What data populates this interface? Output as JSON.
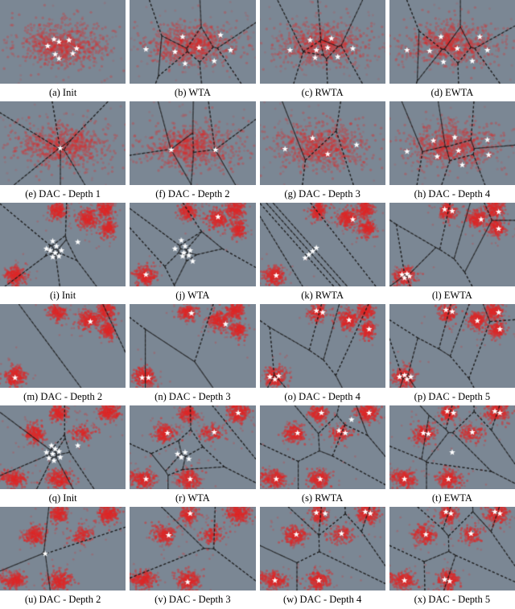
{
  "chart_data": {
    "type": "scatter",
    "grid": {
      "rows": 6,
      "cols": 4
    },
    "style": {
      "panel_bg": "#7b8794",
      "dot_color": "#dd2727",
      "line_color": "#1b1b1b",
      "star_color": "#ffffff",
      "page_bg": "#ffffff",
      "caption_color": "#000000"
    },
    "datasets": {
      "band": {
        "alpha": 0.3,
        "r": 1.7,
        "clusters": [
          {
            "cx": 0.5,
            "cy": 0.52,
            "sx": 0.205,
            "sy": 0.145,
            "n": 470
          },
          {
            "cx": 0.48,
            "cy": 0.55,
            "sx": 0.13,
            "sy": 0.09,
            "n": 260
          }
        ]
      },
      "five": {
        "alpha": 0.5,
        "r": 1.5,
        "clusters": [
          {
            "cx": 0.46,
            "cy": 0.1,
            "sx": 0.033,
            "sy": 0.05,
            "n": 160
          },
          {
            "cx": 0.84,
            "cy": 0.08,
            "sx": 0.033,
            "sy": 0.05,
            "n": 160
          },
          {
            "cx": 0.7,
            "cy": 0.19,
            "sx": 0.04,
            "sy": 0.055,
            "n": 200
          },
          {
            "cx": 0.86,
            "cy": 0.31,
            "sx": 0.03,
            "sy": 0.05,
            "n": 150
          },
          {
            "cx": 0.12,
            "cy": 0.87,
            "sx": 0.04,
            "sy": 0.055,
            "n": 220
          }
        ]
      },
      "six": {
        "alpha": 0.5,
        "r": 1.5,
        "clusters": [
          {
            "cx": 0.47,
            "cy": 0.09,
            "sx": 0.033,
            "sy": 0.05,
            "n": 160
          },
          {
            "cx": 0.86,
            "cy": 0.08,
            "sx": 0.042,
            "sy": 0.055,
            "n": 220
          },
          {
            "cx": 0.28,
            "cy": 0.34,
            "sx": 0.042,
            "sy": 0.055,
            "n": 190
          },
          {
            "cx": 0.65,
            "cy": 0.33,
            "sx": 0.048,
            "sy": 0.05,
            "n": 110
          },
          {
            "cx": 0.12,
            "cy": 0.88,
            "sx": 0.04,
            "sy": 0.05,
            "n": 180
          },
          {
            "cx": 0.47,
            "cy": 0.88,
            "sx": 0.045,
            "sy": 0.055,
            "n": 210
          },
          {
            "cx": 0.03,
            "cy": 0.85,
            "sx": 0.018,
            "sy": 0.035,
            "n": 25
          }
        ]
      }
    },
    "panels": [
      {
        "id": "a",
        "caption": "(a) Init",
        "dataset": "band",
        "voronoi": false,
        "stars": [
          [
            0.43,
            0.47
          ],
          [
            0.47,
            0.5
          ],
          [
            0.38,
            0.55
          ],
          [
            0.55,
            0.48
          ],
          [
            0.61,
            0.58
          ],
          [
            0.44,
            0.65
          ],
          [
            0.47,
            0.7
          ],
          [
            0.58,
            0.64
          ]
        ]
      },
      {
        "id": "b",
        "caption": "(b) WTA",
        "dataset": "band",
        "voronoi": true,
        "stars": [
          [
            0.42,
            0.44
          ],
          [
            0.13,
            0.59
          ],
          [
            0.36,
            0.62
          ],
          [
            0.55,
            0.57
          ],
          [
            0.72,
            0.42
          ],
          [
            0.8,
            0.6
          ],
          [
            0.44,
            0.76
          ],
          [
            0.67,
            0.73
          ]
        ]
      },
      {
        "id": "c",
        "caption": "(c) RWTA",
        "dataset": "band",
        "voronoi": true,
        "stars": [
          [
            0.4,
            0.48
          ],
          [
            0.24,
            0.6
          ],
          [
            0.45,
            0.6
          ],
          [
            0.54,
            0.57
          ],
          [
            0.57,
            0.46
          ],
          [
            0.74,
            0.58
          ],
          [
            0.44,
            0.69
          ],
          [
            0.62,
            0.68
          ]
        ]
      },
      {
        "id": "d",
        "caption": "(d) EWTA",
        "dataset": "band",
        "voronoi": true,
        "stars": [
          [
            0.41,
            0.44
          ],
          [
            0.14,
            0.6
          ],
          [
            0.32,
            0.61
          ],
          [
            0.54,
            0.58
          ],
          [
            0.72,
            0.44
          ],
          [
            0.78,
            0.6
          ],
          [
            0.43,
            0.74
          ],
          [
            0.66,
            0.73
          ]
        ]
      },
      {
        "id": "e",
        "caption": "(e) DAC - Depth 1",
        "dataset": "band",
        "voronoi": true,
        "stars": [
          [
            0.48,
            0.56
          ]
        ],
        "gens": [
          [
            0.505,
            0.55
          ],
          [
            0.49,
            0.52
          ],
          [
            0.458,
            0.528
          ],
          [
            0.443,
            0.565
          ],
          [
            0.462,
            0.6
          ],
          [
            0.5,
            0.6
          ],
          [
            0.528,
            0.575
          ]
        ]
      },
      {
        "id": "f",
        "caption": "(f) DAC - Depth 2",
        "dataset": "band",
        "voronoi": true,
        "stars": [
          [
            0.33,
            0.58
          ],
          [
            0.68,
            0.58
          ]
        ],
        "gens": [
          [
            0.31,
            0.55
          ],
          [
            0.35,
            0.57
          ],
          [
            0.315,
            0.6
          ],
          [
            0.335,
            0.54
          ],
          [
            0.66,
            0.55
          ],
          [
            0.7,
            0.575
          ],
          [
            0.665,
            0.605
          ],
          [
            0.685,
            0.545
          ]
        ]
      },
      {
        "id": "g",
        "caption": "(g) DAC - Depth 3",
        "dataset": "band",
        "voronoi": true,
        "stars": [
          [
            0.42,
            0.44
          ],
          [
            0.2,
            0.57
          ],
          [
            0.54,
            0.63
          ],
          [
            0.77,
            0.52
          ]
        ]
      },
      {
        "id": "h",
        "caption": "(h) DAC - Depth 4",
        "dataset": "band",
        "voronoi": true,
        "stars": [
          [
            0.35,
            0.47
          ],
          [
            0.14,
            0.6
          ],
          [
            0.38,
            0.66
          ],
          [
            0.52,
            0.43
          ],
          [
            0.55,
            0.59
          ],
          [
            0.78,
            0.46
          ],
          [
            0.79,
            0.64
          ],
          [
            0.58,
            0.76
          ]
        ]
      },
      {
        "id": "i",
        "caption": "(i) Init",
        "dataset": "five",
        "voronoi": true,
        "stars": [
          [
            0.42,
            0.46
          ],
          [
            0.37,
            0.55
          ],
          [
            0.4,
            0.57
          ],
          [
            0.45,
            0.52
          ],
          [
            0.44,
            0.6
          ],
          [
            0.49,
            0.57
          ],
          [
            0.42,
            0.65
          ],
          [
            0.47,
            0.64
          ],
          [
            0.62,
            0.47
          ]
        ]
      },
      {
        "id": "j",
        "caption": "(j) WTA",
        "dataset": "five",
        "voronoi": true,
        "stars": [
          [
            0.41,
            0.45
          ],
          [
            0.36,
            0.55
          ],
          [
            0.44,
            0.52
          ],
          [
            0.43,
            0.6
          ],
          [
            0.48,
            0.57
          ],
          [
            0.42,
            0.64
          ],
          [
            0.5,
            0.7
          ],
          [
            0.47,
            0.63
          ],
          [
            0.7,
            0.17
          ],
          [
            0.13,
            0.86
          ]
        ]
      },
      {
        "id": "k",
        "caption": "(k) RWTA",
        "dataset": "five",
        "voronoi": true,
        "stars": [
          [
            0.45,
            0.54
          ],
          [
            0.42,
            0.58
          ],
          [
            0.39,
            0.62
          ],
          [
            0.36,
            0.66
          ],
          [
            0.74,
            0.2
          ],
          [
            0.13,
            0.87
          ]
        ]
      },
      {
        "id": "l",
        "caption": "(l) EWTA",
        "dataset": "five",
        "voronoi": true,
        "stars": [
          [
            0.44,
            0.08
          ],
          [
            0.5,
            0.1
          ],
          [
            0.73,
            0.2
          ],
          [
            0.87,
            0.11
          ],
          [
            0.87,
            0.31
          ],
          [
            0.1,
            0.86
          ],
          [
            0.14,
            0.85
          ],
          [
            0.12,
            0.9
          ],
          [
            0.16,
            0.88
          ]
        ]
      },
      {
        "id": "m",
        "caption": "(m) DAC - Depth 2",
        "dataset": "five",
        "voronoi": true,
        "stars": [
          [
            0.72,
            0.21
          ],
          [
            0.12,
            0.88
          ]
        ],
        "gens": [
          [
            0.72,
            0.21
          ],
          [
            0.12,
            0.88
          ],
          [
            0.99,
            0.02
          ]
        ]
      },
      {
        "id": "n",
        "caption": "(n) DAC - Depth 3",
        "dataset": "five",
        "voronoi": true,
        "stars": [
          [
            0.49,
            0.11
          ],
          [
            0.76,
            0.24
          ],
          [
            0.1,
            0.88
          ],
          [
            0.15,
            0.88
          ]
        ]
      },
      {
        "id": "o",
        "caption": "(o) DAC - Depth 4",
        "dataset": "five",
        "voronoi": true,
        "stars": [
          [
            0.45,
            0.08
          ],
          [
            0.5,
            0.1
          ],
          [
            0.71,
            0.19
          ],
          [
            0.87,
            0.3
          ],
          [
            0.08,
            0.87
          ],
          [
            0.12,
            0.9
          ],
          [
            0.15,
            0.86
          ]
        ]
      },
      {
        "id": "p",
        "caption": "(p) DAC - Depth 5",
        "dataset": "five",
        "voronoi": true,
        "stars": [
          [
            0.45,
            0.07
          ],
          [
            0.5,
            0.09
          ],
          [
            0.7,
            0.2
          ],
          [
            0.87,
            0.1
          ],
          [
            0.88,
            0.3
          ],
          [
            0.08,
            0.87
          ],
          [
            0.12,
            0.85
          ],
          [
            0.14,
            0.9
          ],
          [
            0.17,
            0.87
          ]
        ]
      },
      {
        "id": "q",
        "caption": "(q) Init",
        "dataset": "six",
        "voronoi": true,
        "stars": [
          [
            0.41,
            0.48
          ],
          [
            0.44,
            0.52
          ],
          [
            0.37,
            0.56
          ],
          [
            0.42,
            0.58
          ],
          [
            0.47,
            0.55
          ],
          [
            0.39,
            0.63
          ],
          [
            0.43,
            0.66
          ],
          [
            0.48,
            0.62
          ],
          [
            0.62,
            0.48
          ]
        ]
      },
      {
        "id": "r",
        "caption": "(r) WTA",
        "dataset": "six",
        "voronoi": true,
        "stars": [
          [
            0.86,
            0.09
          ],
          [
            0.3,
            0.33
          ],
          [
            0.67,
            0.32
          ],
          [
            0.13,
            0.88
          ],
          [
            0.48,
            0.88
          ],
          [
            0.38,
            0.58
          ],
          [
            0.41,
            0.62
          ],
          [
            0.44,
            0.56
          ],
          [
            0.47,
            0.64
          ]
        ]
      },
      {
        "id": "s",
        "caption": "(s) RWTA",
        "dataset": "six",
        "voronoi": true,
        "stars": [
          [
            0.49,
            0.09
          ],
          [
            0.87,
            0.09
          ],
          [
            0.3,
            0.33
          ],
          [
            0.63,
            0.3
          ],
          [
            0.68,
            0.33
          ],
          [
            0.73,
            0.17
          ],
          [
            0.13,
            0.88
          ],
          [
            0.48,
            0.88
          ]
        ]
      },
      {
        "id": "t",
        "caption": "(t) EWTA",
        "dataset": "six",
        "voronoi": true,
        "stars": [
          [
            0.46,
            0.07
          ],
          [
            0.51,
            0.09
          ],
          [
            0.84,
            0.07
          ],
          [
            0.88,
            0.09
          ],
          [
            0.27,
            0.33
          ],
          [
            0.31,
            0.34
          ],
          [
            0.66,
            0.32
          ],
          [
            0.5,
            0.56
          ],
          [
            0.12,
            0.88
          ],
          [
            0.47,
            0.88
          ]
        ]
      },
      {
        "id": "u",
        "caption": "(u) DAC - Depth 2",
        "dataset": "six",
        "voronoi": true,
        "stars": [
          [
            0.36,
            0.56
          ]
        ],
        "gens": [
          [
            0.335,
            0.53
          ],
          [
            0.355,
            0.555
          ],
          [
            0.375,
            0.58
          ],
          [
            0.35,
            0.585
          ],
          [
            0.365,
            0.535
          ]
        ]
      },
      {
        "id": "v",
        "caption": "(v) DAC - Depth 3",
        "dataset": "six",
        "voronoi": true,
        "stars": [
          [
            0.48,
            0.08
          ],
          [
            0.31,
            0.34
          ],
          [
            0.46,
            0.9
          ]
        ],
        "gens": [
          [
            0.48,
            0.08
          ],
          [
            0.31,
            0.34
          ],
          [
            0.46,
            0.9
          ],
          [
            0.87,
            0.1
          ]
        ]
      },
      {
        "id": "w",
        "caption": "(w) DAC - Depth 4",
        "dataset": "six",
        "voronoi": true,
        "stars": [
          [
            0.45,
            0.07
          ],
          [
            0.52,
            0.08
          ],
          [
            0.84,
            0.06
          ],
          [
            0.88,
            0.08
          ],
          [
            0.29,
            0.33
          ],
          [
            0.65,
            0.32
          ],
          [
            0.12,
            0.88
          ],
          [
            0.47,
            0.88
          ]
        ]
      },
      {
        "id": "x",
        "caption": "(x) DAC - Depth 5",
        "dataset": "six",
        "voronoi": true,
        "stars": [
          [
            0.45,
            0.06
          ],
          [
            0.49,
            0.08
          ],
          [
            0.84,
            0.06
          ],
          [
            0.88,
            0.08
          ],
          [
            0.29,
            0.33
          ],
          [
            0.65,
            0.32
          ],
          [
            0.12,
            0.88
          ],
          [
            0.44,
            0.87
          ],
          [
            0.48,
            0.89
          ]
        ]
      }
    ]
  }
}
